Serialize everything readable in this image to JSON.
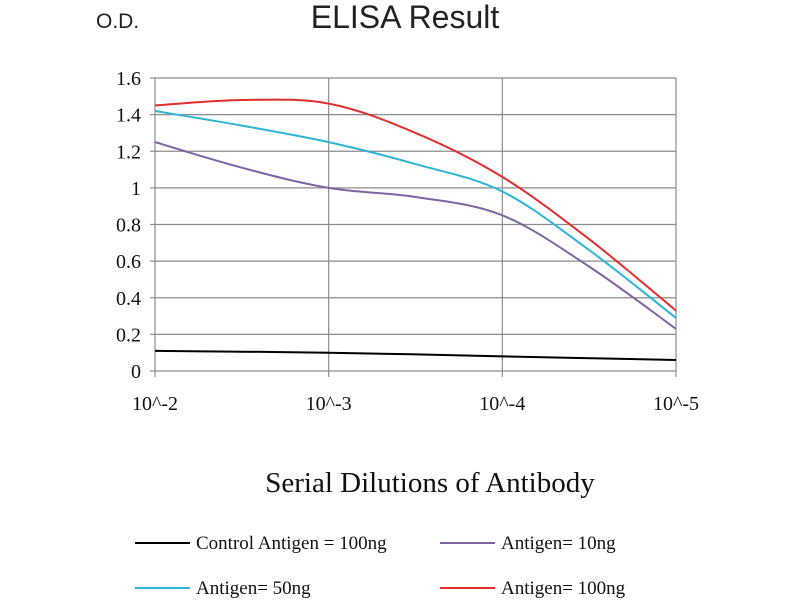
{
  "chart_data": {
    "type": "line",
    "title": "ELISA Result",
    "ylabel": "O.D.",
    "xlabel": "Serial Dilutions of Antibody",
    "categories": [
      "10^-2",
      "10^-3",
      "10^-4",
      "10^-5"
    ],
    "ylim": [
      0,
      1.6
    ],
    "yticks": [
      0,
      0.2,
      0.4,
      0.6,
      0.8,
      1,
      1.2,
      1.4,
      1.6
    ],
    "grid": true,
    "legend_position": "bottom",
    "series": [
      {
        "name": "Control Antigen = 100ng",
        "color": "#000000",
        "points": [
          [
            0,
            0.11
          ],
          [
            1,
            0.1
          ],
          [
            2,
            0.08
          ],
          [
            3,
            0.06
          ]
        ]
      },
      {
        "name": "Antigen= 10ng",
        "color": "#8064a2",
        "points": [
          [
            0,
            1.25
          ],
          [
            0.5,
            1.11
          ],
          [
            1,
            1.0
          ],
          [
            1.5,
            0.95
          ],
          [
            2,
            0.85
          ],
          [
            2.5,
            0.57
          ],
          [
            3,
            0.23
          ]
        ]
      },
      {
        "name": "Antigen= 50ng",
        "color": "#2eb5d6",
        "points": [
          [
            0,
            1.42
          ],
          [
            0.5,
            1.34
          ],
          [
            1,
            1.25
          ],
          [
            1.5,
            1.13
          ],
          [
            2,
            0.98
          ],
          [
            2.5,
            0.66
          ],
          [
            3,
            0.29
          ]
        ]
      },
      {
        "name": "Antigen= 100ng",
        "color": "#e0302e",
        "points": [
          [
            0,
            1.45
          ],
          [
            0.5,
            1.48
          ],
          [
            1,
            1.46
          ],
          [
            1.5,
            1.3
          ],
          [
            2,
            1.06
          ],
          [
            2.5,
            0.72
          ],
          [
            3,
            0.33
          ]
        ]
      }
    ]
  }
}
